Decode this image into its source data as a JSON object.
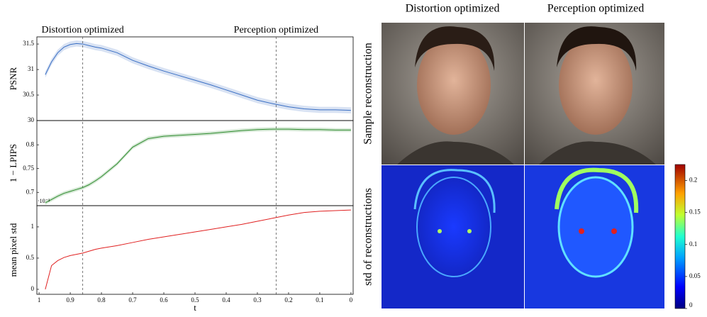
{
  "figure": {
    "columns": [
      "Distortion optimized",
      "Perception optimized"
    ],
    "rows": [
      "Sample reconstruction",
      "std of reconstructions"
    ]
  },
  "chart_data": [
    {
      "type": "line",
      "ylabel": "PSNR",
      "x": [
        0.98,
        0.96,
        0.94,
        0.92,
        0.9,
        0.88,
        0.86,
        0.84,
        0.82,
        0.8,
        0.75,
        0.7,
        0.65,
        0.6,
        0.55,
        0.5,
        0.45,
        0.4,
        0.35,
        0.3,
        0.25,
        0.2,
        0.15,
        0.1,
        0.05,
        0
      ],
      "series": [
        {
          "color": "#3a6fc4",
          "band": 0.06,
          "values": [
            30.9,
            31.15,
            31.33,
            31.44,
            31.49,
            31.51,
            31.5,
            31.47,
            31.44,
            31.42,
            31.33,
            31.18,
            31.07,
            30.97,
            30.88,
            30.79,
            30.7,
            30.6,
            30.5,
            30.4,
            30.33,
            30.27,
            30.23,
            30.21,
            30.21,
            30.2
          ]
        }
      ],
      "xlim": [
        1.007,
        -0.007
      ],
      "ylim": [
        30,
        31.64
      ],
      "yticks": [
        30,
        30.5,
        31,
        31.5
      ],
      "annotations": [
        {
          "text": "Distortion optimized",
          "x": 0.86
        },
        {
          "text": "Perception optimized",
          "x": 0.24
        }
      ]
    },
    {
      "type": "line",
      "ylabel": "1 − LPIPS",
      "x": [
        0.98,
        0.96,
        0.94,
        0.92,
        0.9,
        0.88,
        0.86,
        0.84,
        0.82,
        0.8,
        0.75,
        0.7,
        0.65,
        0.6,
        0.55,
        0.5,
        0.45,
        0.4,
        0.35,
        0.3,
        0.25,
        0.2,
        0.15,
        0.1,
        0.05,
        0
      ],
      "series": [
        {
          "color": "#2e8b2e",
          "band": 0.004,
          "values": [
            0.678,
            0.685,
            0.692,
            0.698,
            0.702,
            0.706,
            0.71,
            0.716,
            0.724,
            0.733,
            0.76,
            0.795,
            0.813,
            0.818,
            0.82,
            0.822,
            0.824,
            0.827,
            0.83,
            0.832,
            0.833,
            0.833,
            0.832,
            0.832,
            0.831,
            0.831
          ]
        }
      ],
      "xlim": [
        1.007,
        -0.007
      ],
      "ylim": [
        0.672,
        0.851
      ],
      "yticks": [
        0.7,
        0.75,
        0.8
      ]
    },
    {
      "type": "line",
      "ylabel": "mean pixel std",
      "xlabel": "t",
      "offset_label": "·10⁻²",
      "x": [
        0.98,
        0.96,
        0.94,
        0.92,
        0.9,
        0.88,
        0.86,
        0.84,
        0.82,
        0.8,
        0.75,
        0.7,
        0.65,
        0.6,
        0.55,
        0.5,
        0.45,
        0.4,
        0.35,
        0.3,
        0.25,
        0.2,
        0.15,
        0.1,
        0.05,
        0
      ],
      "series": [
        {
          "color": "#e02020",
          "values": [
            0,
            0.38,
            0.46,
            0.51,
            0.54,
            0.56,
            0.58,
            0.61,
            0.64,
            0.66,
            0.7,
            0.75,
            0.8,
            0.84,
            0.88,
            0.92,
            0.96,
            1,
            1.04,
            1.09,
            1.14,
            1.19,
            1.23,
            1.25,
            1.26,
            1.27
          ]
        }
      ],
      "xlim": [
        1.007,
        -0.007
      ],
      "ylim": [
        -0.08,
        1.34
      ],
      "yticks": [
        0,
        0.5,
        1
      ],
      "xticks": [
        1,
        0.9,
        0.8,
        0.7,
        0.6,
        0.5,
        0.4,
        0.3,
        0.2,
        0.1,
        0
      ]
    },
    {
      "type": "colorbar",
      "ylim": [
        0,
        0.225
      ],
      "yticks": [
        0,
        0.05,
        0.1,
        0.15,
        0.2
      ]
    }
  ]
}
